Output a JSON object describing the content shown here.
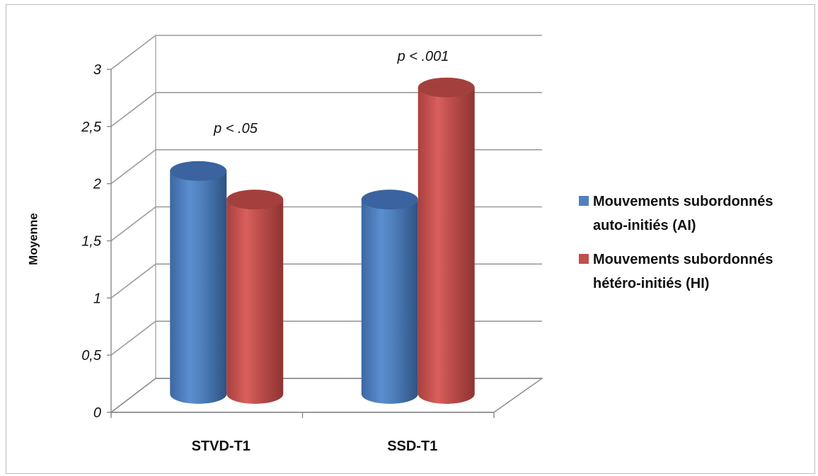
{
  "chart_data": {
    "type": "bar",
    "style": "3d-cylinder",
    "categories": [
      "STVD-T1",
      "SSD-T1"
    ],
    "series": [
      {
        "name": [
          "Mouvements subordonnés",
          "auto-initiés (AI)"
        ],
        "color": "#4f81bd",
        "values": [
          1.95,
          1.7
        ]
      },
      {
        "name": [
          "Mouvements subordonnés",
          "hétéro-initiés (HI)"
        ],
        "color": "#c0504d",
        "values": [
          1.7,
          2.68
        ]
      }
    ],
    "ylabel": "Moyenne",
    "ylim": [
      0,
      3
    ],
    "yticks": [
      "0",
      "0,5",
      "1",
      "1,5",
      "2",
      "2,5",
      "3"
    ],
    "grid": true,
    "legend": "right",
    "annotations": [
      "p < .05",
      "p < .001"
    ]
  }
}
